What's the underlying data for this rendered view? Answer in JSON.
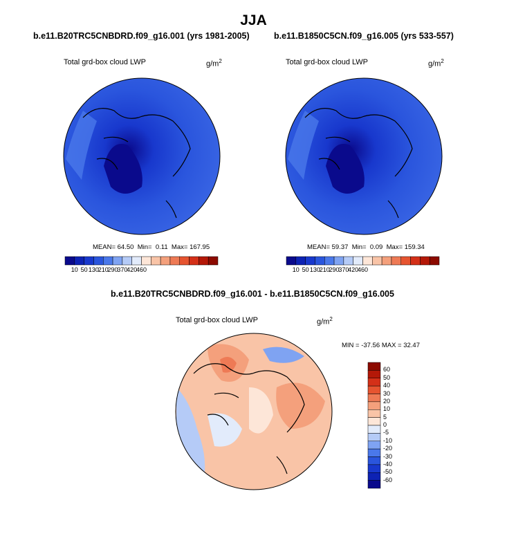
{
  "page_title": "JJA",
  "panels": [
    {
      "case_title": "b.e11.B20TRC5CNBDRD.f09_g16.001 (yrs 1981-2005)",
      "var_label": "Total grd-box cloud LWP",
      "unit_base": "g/m",
      "unit_exp": "2",
      "stats": {
        "mean_label": "MEAN=",
        "mean": "64.50",
        "min_label": "Min=",
        "min": "0.11",
        "max_label": "Max=",
        "max": "167.95"
      }
    },
    {
      "case_title": "b.e11.B1850C5CN.f09_g16.005 (yrs 533-557)",
      "var_label": "Total grd-box cloud LWP",
      "unit_base": "g/m",
      "unit_exp": "2",
      "stats": {
        "mean_label": "MEAN=",
        "mean": "59.37",
        "min_label": "Min=",
        "min": "0.09",
        "max_label": "Max=",
        "max": "159.34"
      }
    }
  ],
  "diff_panel": {
    "case_title": "b.e11.B20TRC5CNBDRD.f09_g16.001 - b.e11.B1850C5CN.f09_g16.005",
    "var_label": "Total grd-box cloud LWP",
    "unit_base": "g/m",
    "unit_exp": "2",
    "minmax_text": "MIN = -37.56 MAX =  32.47"
  },
  "colorbar_abs": {
    "tick_labels": [
      "10",
      "50",
      "130",
      "210",
      "290",
      "370",
      "420",
      "460"
    ],
    "colors": [
      "#0a0a8c",
      "#0d22b4",
      "#1838cd",
      "#2a55dd",
      "#4a78ea",
      "#7fa3f2",
      "#b5cbf7",
      "#e2ebfb",
      "#fde6d8",
      "#f9c4a7",
      "#f4a07c",
      "#ee7a55",
      "#e65430",
      "#d43018",
      "#b41808",
      "#8c0a00"
    ]
  },
  "colorbar_diff": {
    "tick_labels": [
      "60",
      "50",
      "40",
      "30",
      "20",
      "10",
      "5",
      "0",
      "-5",
      "-10",
      "-20",
      "-30",
      "-40",
      "-50",
      "-60"
    ],
    "colors": [
      "#8c0a00",
      "#b41808",
      "#d43018",
      "#e65430",
      "#ee7a55",
      "#f4a07c",
      "#f9c4a7",
      "#fde6d8",
      "#e2ebfb",
      "#b5cbf7",
      "#7fa3f2",
      "#4a78ea",
      "#2a55dd",
      "#1838cd",
      "#0d22b4",
      "#0a0a8c"
    ]
  },
  "chart_data": [
    {
      "type": "heatmap",
      "title": "b.e11.B20TRC5CNBDRD.f09_g16.001 (yrs 1981-2005)",
      "variable": "Total grd-box cloud LWP",
      "units": "g/m2",
      "projection": "polar-stereographic (North Pole)",
      "stats": {
        "mean": 64.5,
        "min": 0.11,
        "max": 167.95
      },
      "levels": [
        10,
        50,
        130,
        210,
        290,
        370,
        420,
        460
      ]
    },
    {
      "type": "heatmap",
      "title": "b.e11.B1850C5CN.f09_g16.005 (yrs 533-557)",
      "variable": "Total grd-box cloud LWP",
      "units": "g/m2",
      "projection": "polar-stereographic (North Pole)",
      "stats": {
        "mean": 59.37,
        "min": 0.09,
        "max": 159.34
      },
      "levels": [
        10,
        50,
        130,
        210,
        290,
        370,
        420,
        460
      ]
    },
    {
      "type": "heatmap",
      "title": "b.e11.B20TRC5CNBDRD.f09_g16.001 - b.e11.B1850C5CN.f09_g16.005",
      "variable": "Total grd-box cloud LWP",
      "units": "g/m2",
      "projection": "polar-stereographic (North Pole)",
      "stats": {
        "min": -37.56,
        "max": 32.47
      },
      "levels": [
        -60,
        -50,
        -40,
        -30,
        -20,
        -10,
        -5,
        0,
        5,
        10,
        20,
        30,
        40,
        50,
        60
      ]
    }
  ]
}
